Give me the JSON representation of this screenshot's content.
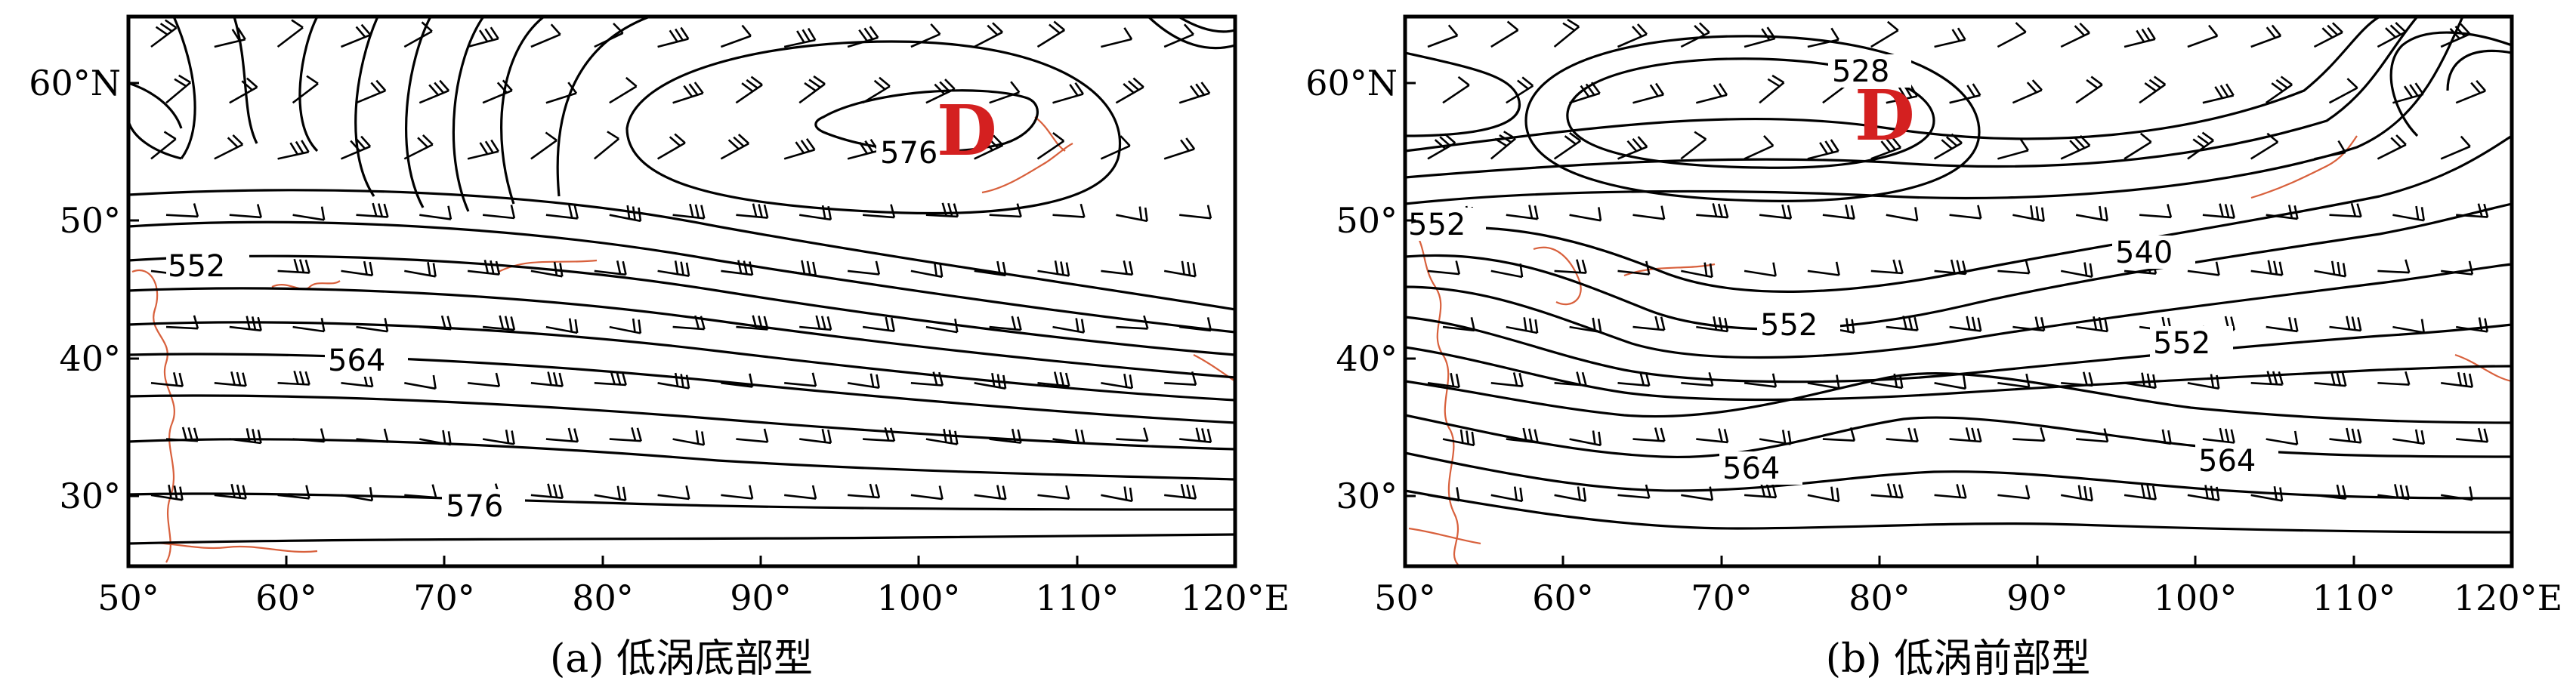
{
  "colors": {
    "low_marker": "#d42020",
    "coastline": "#d8603c",
    "contour": "#000000"
  },
  "panels": [
    {
      "caption": "(a) 低涡底部型",
      "low_marker": "D",
      "contour_labels": [
        "576",
        "552",
        "564",
        "576"
      ],
      "x_ticks": [
        "50°",
        "60°",
        "70°",
        "80°",
        "90°",
        "100°",
        "110°",
        "120°E"
      ],
      "y_ticks": [
        "60°N",
        "50°",
        "40°",
        "30°"
      ]
    },
    {
      "caption": "(b) 低涡前部型",
      "low_marker": "D",
      "contour_labels": [
        "528",
        "552",
        "540",
        "552",
        "552",
        "564",
        "564"
      ],
      "x_ticks": [
        "50°",
        "60°",
        "70°",
        "80°",
        "90°",
        "100°",
        "110°",
        "120°E"
      ],
      "y_ticks": [
        "60°N",
        "50°",
        "40°",
        "30°"
      ]
    }
  ]
}
